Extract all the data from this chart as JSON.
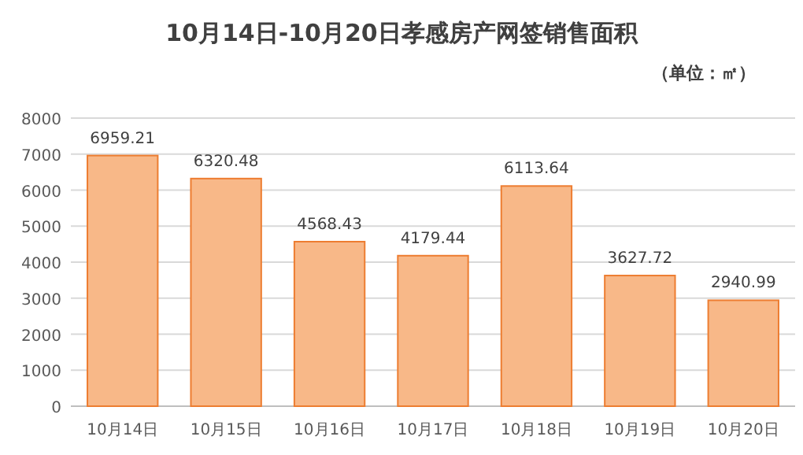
{
  "chart_data": {
    "type": "bar",
    "title": "10月14日-10月20日孝感房产网签销售面积",
    "subtitle": "（单位：㎡）",
    "categories": [
      "10月14日",
      "10月15日",
      "10月16日",
      "10月17日",
      "10月18日",
      "10月19日",
      "10月20日"
    ],
    "values": [
      6959.21,
      6320.48,
      4568.43,
      4179.44,
      6113.64,
      3627.72,
      2940.99
    ],
    "color": "#f8b888",
    "ylim": [
      0,
      8000
    ],
    "yticks": [
      0,
      1000,
      2000,
      3000,
      4000,
      5000,
      6000,
      7000,
      8000
    ],
    "grid": "y",
    "data_labels": true
  }
}
